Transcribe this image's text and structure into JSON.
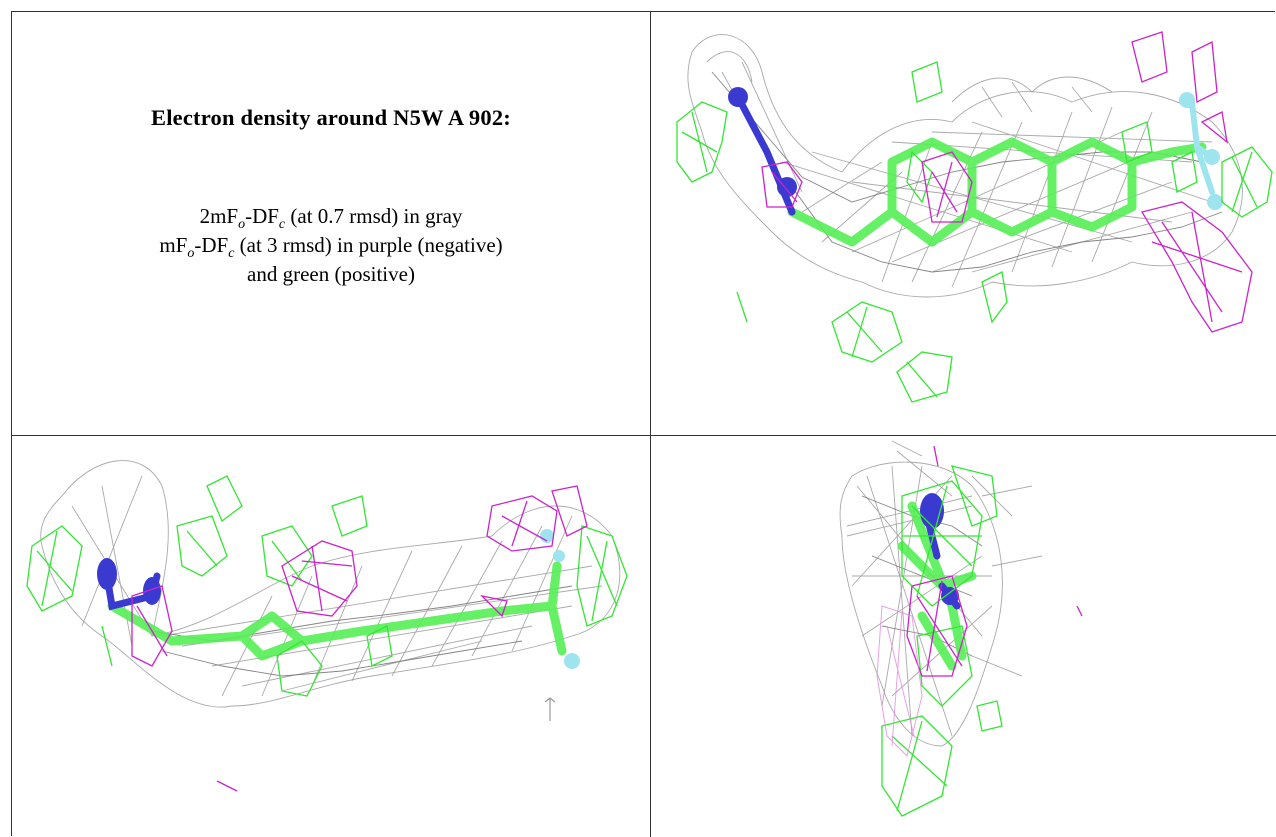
{
  "title": "Electron density around N5W A 902:",
  "map_2fo": {
    "prefix": "2mF",
    "sub1": "o",
    "mid": "-DF",
    "sub2": "c",
    "suffix": " (at 0.7 rmsd) in gray"
  },
  "map_fo": {
    "prefix": "mF",
    "sub1": "o",
    "mid": "-DF",
    "sub2": "c",
    "suffix": " (at 3 rmsd) in purple (negative)"
  },
  "map_fo_cont": "and green (positive)",
  "colors": {
    "map_2fo": "#9a9a9a",
    "map_fo_negative": "#cc22cc",
    "map_fo_positive": "#33e633",
    "carbon": "#55ee55",
    "nitrogen": "#3a3ad0",
    "fluorine": "#9ee4ee"
  }
}
